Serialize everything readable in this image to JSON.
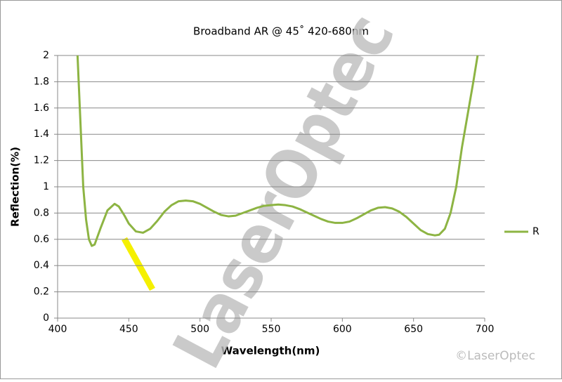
{
  "chart_data": {
    "type": "line",
    "title": "Broadband AR @ 45˚ 420-680nm",
    "xlabel": "Wavelength(nm)",
    "ylabel": "Reflection(%)",
    "x": [
      414,
      416,
      418,
      420,
      422,
      424,
      426,
      430,
      435,
      440,
      443,
      447,
      450,
      455,
      460,
      465,
      470,
      475,
      480,
      485,
      490,
      495,
      500,
      505,
      510,
      515,
      520,
      525,
      530,
      535,
      540,
      545,
      550,
      555,
      560,
      565,
      570,
      575,
      580,
      585,
      590,
      595,
      600,
      605,
      610,
      615,
      620,
      625,
      630,
      635,
      640,
      645,
      650,
      655,
      660,
      665,
      668,
      672,
      676,
      680,
      684,
      688,
      692,
      695
    ],
    "series": [
      {
        "name": "R",
        "color": "#8db443",
        "values": [
          2.0,
          1.5,
          1.0,
          0.75,
          0.6,
          0.55,
          0.56,
          0.68,
          0.82,
          0.87,
          0.85,
          0.78,
          0.72,
          0.66,
          0.65,
          0.68,
          0.74,
          0.81,
          0.86,
          0.89,
          0.895,
          0.89,
          0.87,
          0.84,
          0.81,
          0.785,
          0.775,
          0.78,
          0.8,
          0.82,
          0.84,
          0.855,
          0.86,
          0.865,
          0.86,
          0.85,
          0.83,
          0.805,
          0.78,
          0.755,
          0.735,
          0.725,
          0.725,
          0.735,
          0.76,
          0.79,
          0.82,
          0.84,
          0.845,
          0.835,
          0.81,
          0.77,
          0.72,
          0.67,
          0.64,
          0.63,
          0.635,
          0.68,
          0.8,
          1.0,
          1.3,
          1.55,
          1.8,
          2.0
        ]
      }
    ],
    "xlim": [
      400,
      700
    ],
    "xticks": [
      400,
      450,
      500,
      550,
      600,
      650,
      700
    ],
    "ylim": [
      0,
      2
    ],
    "yticks": [
      0,
      0.2,
      0.4,
      0.6,
      0.8,
      1,
      1.2,
      1.4,
      1.6,
      1.8,
      2
    ],
    "grid": true,
    "legend": "right"
  },
  "watermark": "LaserOptec",
  "copyright": "©LaserOptec"
}
